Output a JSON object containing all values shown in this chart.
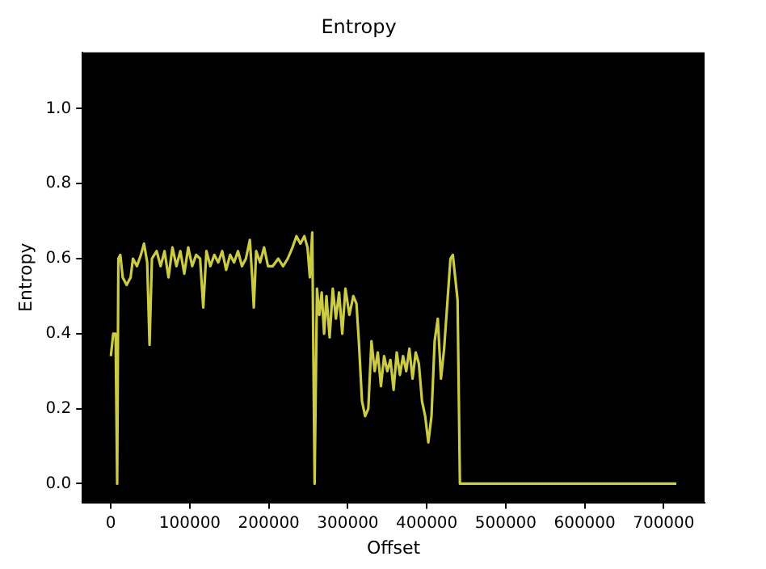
{
  "chart_data": {
    "type": "line",
    "title": "Entropy",
    "xlabel": "Offset",
    "ylabel": "Entropy",
    "x": [
      0,
      3000,
      6000,
      8000,
      9500,
      12000,
      15000,
      20000,
      25000,
      28000,
      33000,
      38000,
      42000,
      46000,
      49000,
      52000,
      58000,
      63000,
      68000,
      73000,
      78000,
      83000,
      88000,
      93000,
      98000,
      103000,
      108000,
      113000,
      117000,
      121000,
      126000,
      131000,
      136000,
      141000,
      146000,
      151000,
      156000,
      161000,
      166000,
      171000,
      176000,
      179000,
      181000,
      184000,
      189000,
      194000,
      199000,
      205000,
      212000,
      218000,
      224000,
      230000,
      235000,
      240000,
      245000,
      249000,
      252000,
      255000,
      258000,
      261000,
      264000,
      267000,
      270000,
      273000,
      277000,
      281000,
      285000,
      289000,
      293000,
      297000,
      302000,
      307000,
      311000,
      314000,
      318000,
      322000,
      326000,
      330000,
      334000,
      338000,
      342000,
      346000,
      350000,
      354000,
      358000,
      362000,
      366000,
      370000,
      374000,
      378000,
      382000,
      386000,
      390000,
      394000,
      398000,
      402000,
      406000,
      410000,
      414000,
      418000,
      422000,
      426000,
      430000,
      433000,
      436000,
      439000,
      442000,
      716000
    ],
    "series": [
      {
        "color": "#cccc44",
        "values": [
          0.34,
          0.4,
          0.4,
          0.0,
          0.6,
          0.61,
          0.55,
          0.53,
          0.55,
          0.6,
          0.58,
          0.61,
          0.64,
          0.59,
          0.37,
          0.6,
          0.62,
          0.58,
          0.62,
          0.55,
          0.63,
          0.58,
          0.62,
          0.56,
          0.63,
          0.58,
          0.61,
          0.6,
          0.47,
          0.62,
          0.58,
          0.61,
          0.59,
          0.62,
          0.57,
          0.61,
          0.59,
          0.62,
          0.58,
          0.6,
          0.65,
          0.55,
          0.47,
          0.62,
          0.59,
          0.63,
          0.58,
          0.58,
          0.6,
          0.58,
          0.6,
          0.63,
          0.66,
          0.64,
          0.66,
          0.63,
          0.55,
          0.67,
          0.0,
          0.52,
          0.45,
          0.51,
          0.4,
          0.5,
          0.39,
          0.52,
          0.44,
          0.51,
          0.4,
          0.52,
          0.45,
          0.5,
          0.48,
          0.38,
          0.22,
          0.18,
          0.2,
          0.38,
          0.3,
          0.35,
          0.26,
          0.34,
          0.3,
          0.33,
          0.25,
          0.35,
          0.29,
          0.34,
          0.3,
          0.36,
          0.28,
          0.35,
          0.32,
          0.22,
          0.18,
          0.11,
          0.18,
          0.38,
          0.44,
          0.28,
          0.36,
          0.48,
          0.6,
          0.61,
          0.55,
          0.49,
          0.0,
          0.0
        ]
      }
    ],
    "xlim": [
      -35800,
      751800
    ],
    "xticks": [
      0,
      100000,
      200000,
      300000,
      400000,
      500000,
      600000,
      700000
    ],
    "ylim": [
      -0.05,
      1.15
    ],
    "yticks": [
      {
        "value": 0,
        "label": "0.0"
      },
      {
        "value": 0.2,
        "label": "0.2"
      },
      {
        "value": 0.4,
        "label": "0.4"
      },
      {
        "value": 0.6,
        "label": "0.6"
      },
      {
        "value": 0.8,
        "label": "0.8"
      },
      {
        "value": 1,
        "label": "1.0"
      }
    ],
    "grid": false,
    "legend": false,
    "marker": "none",
    "line_style": "solid"
  }
}
